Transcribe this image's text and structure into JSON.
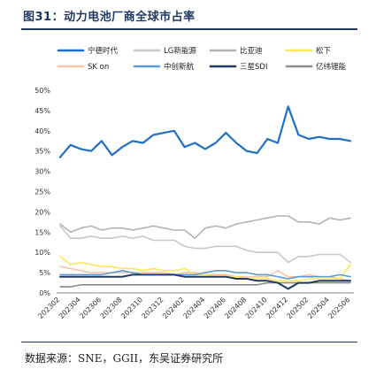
{
  "figure": {
    "title": "图31：动力电池厂商全球市占率",
    "source": "数据来源：SNE，GGII，东吴证券研究所"
  },
  "chart_data": {
    "type": "line",
    "x": [
      "202302",
      "202303",
      "202304",
      "202305",
      "202306",
      "202307",
      "202308",
      "202309",
      "202310",
      "202311",
      "202312",
      "202401",
      "202402",
      "202403",
      "202404",
      "202405",
      "202406",
      "202407",
      "202408",
      "202409",
      "202410",
      "202411",
      "202412",
      "202501",
      "202502",
      "202503",
      "202504",
      "202505",
      "202506"
    ],
    "x_tick_labels": [
      "202302",
      "202304",
      "202306",
      "202308",
      "202310",
      "202312",
      "202402",
      "202404",
      "202406",
      "202408",
      "202410",
      "202412",
      "202502",
      "202504",
      "202506"
    ],
    "y_ticks": [
      "0%",
      "5%",
      "10%",
      "15%",
      "20%",
      "25%",
      "30%",
      "35%",
      "40%",
      "45%",
      "50%"
    ],
    "ylim": [
      0,
      50
    ],
    "y_unit": "%",
    "grid": false,
    "legend_position": "top",
    "series": [
      {
        "name": "宁德时代",
        "color": "#1f6fc5",
        "width": 2.2,
        "values": [
          33.5,
          36.5,
          35.5,
          35.0,
          37.5,
          34.0,
          36.0,
          37.5,
          37.0,
          39.0,
          39.5,
          40.0,
          36.0,
          37.0,
          35.5,
          37.0,
          39.5,
          37.0,
          35.0,
          34.5,
          38.0,
          37.0,
          46.0,
          39.0,
          38.0,
          38.5,
          38.0,
          38.0,
          37.5
        ]
      },
      {
        "name": "LG新能源",
        "color": "#c8c8c8",
        "width": 1.6,
        "values": [
          16.5,
          13.5,
          13.5,
          14.0,
          13.5,
          13.5,
          14.0,
          13.5,
          14.0,
          13.0,
          13.0,
          13.0,
          11.5,
          11.0,
          11.0,
          11.5,
          11.5,
          11.5,
          10.5,
          10.0,
          10.0,
          10.0,
          7.5,
          9.0,
          9.0,
          9.5,
          9.5,
          9.5,
          7.5
        ]
      },
      {
        "name": "比亚迪",
        "color": "#b3b3b3",
        "width": 1.6,
        "values": [
          17.0,
          15.0,
          16.0,
          16.5,
          15.5,
          16.0,
          16.0,
          15.5,
          16.0,
          16.5,
          16.0,
          15.5,
          15.5,
          13.5,
          16.0,
          16.5,
          16.0,
          17.0,
          17.5,
          18.0,
          18.5,
          19.0,
          19.0,
          17.5,
          17.5,
          17.0,
          18.5,
          18.0,
          18.5
        ]
      },
      {
        "name": "松下",
        "color": "#ffe75a",
        "width": 1.6,
        "values": [
          9.0,
          7.0,
          7.5,
          7.0,
          6.5,
          6.5,
          6.0,
          6.0,
          5.5,
          6.0,
          5.5,
          5.5,
          6.0,
          4.5,
          4.5,
          4.0,
          4.0,
          4.0,
          3.5,
          3.5,
          3.5,
          3.0,
          3.0,
          3.0,
          3.5,
          3.5,
          3.5,
          3.5,
          7.0
        ]
      },
      {
        "name": "SK on",
        "color": "#f5c4a6",
        "width": 1.6,
        "values": [
          6.5,
          6.0,
          5.5,
          5.0,
          5.0,
          5.0,
          5.0,
          5.0,
          5.0,
          5.0,
          5.0,
          4.5,
          5.0,
          5.0,
          4.5,
          4.5,
          4.5,
          4.0,
          4.0,
          4.0,
          4.0,
          5.5,
          4.0,
          4.0,
          4.5,
          4.0,
          4.0,
          3.5,
          3.0
        ]
      },
      {
        "name": "中创新航",
        "color": "#5b9bd5",
        "width": 1.6,
        "values": [
          4.5,
          4.5,
          4.5,
          4.5,
          4.5,
          5.0,
          5.5,
          5.0,
          4.5,
          4.5,
          4.5,
          4.5,
          4.5,
          4.5,
          5.0,
          5.5,
          5.5,
          5.0,
          5.0,
          4.5,
          4.5,
          4.0,
          3.5,
          4.0,
          4.0,
          4.0,
          4.0,
          4.5,
          4.0
        ]
      },
      {
        "name": "三星SDI",
        "color": "#1f3864",
        "width": 2.0,
        "values": [
          4.0,
          4.0,
          4.0,
          4.0,
          4.0,
          4.0,
          4.0,
          4.5,
          4.5,
          4.5,
          4.5,
          4.5,
          4.0,
          4.0,
          4.0,
          4.0,
          4.0,
          3.5,
          3.5,
          3.0,
          3.0,
          2.5,
          1.0,
          2.5,
          2.5,
          3.0,
          3.0,
          3.0,
          3.0
        ]
      },
      {
        "name": "亿纬锂能",
        "color": "#8c8c8c",
        "width": 1.6,
        "values": [
          1.5,
          1.5,
          2.0,
          2.0,
          2.0,
          2.0,
          2.0,
          2.0,
          2.0,
          2.0,
          2.0,
          2.0,
          2.0,
          2.0,
          2.0,
          2.0,
          2.0,
          2.0,
          2.0,
          2.0,
          2.5,
          2.5,
          2.5,
          2.5,
          2.5,
          2.5,
          2.5,
          2.5,
          2.5
        ]
      }
    ]
  }
}
